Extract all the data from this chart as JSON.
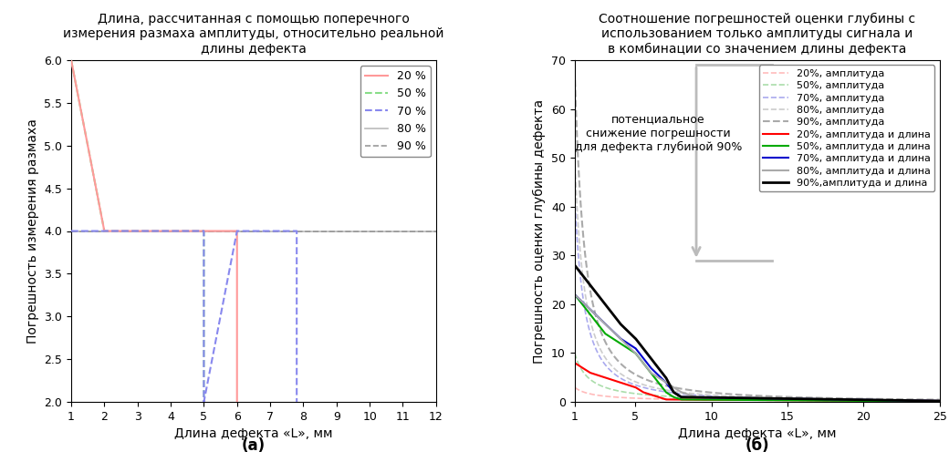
{
  "title_a": "Длина, рассчитанная с помощью поперечного\nизмерения размаха амплитуды, относительно реальной\nдлины дефекта",
  "title_b": "Соотношение погрешностей оценки глубины с\nиспользованием только амплитуды сигнала и\nв комбинации со значением длины дефекта",
  "xlabel": "Длина дефекта «L», мм",
  "ylabel_a": "Погрешность измерения размаха",
  "ylabel_b": "Погрешность оценки глубины дефекта",
  "label_a": "(а)",
  "label_b": "(б)",
  "annotation_text": "потенциальное\nснижение погрешности\nдля дефекта глубиной 90%",
  "legend_a": [
    "20 %",
    "50 %",
    "70 %",
    "80 %",
    "90 %"
  ],
  "legend_b_amp": [
    "20%, амплитуда",
    "50%, амплитуда",
    "70%, амплитуда",
    "80%, амплитуда",
    "90%, амплитуда"
  ],
  "legend_b_combo": [
    "20%, амплитуда и длина",
    "50%, амплитуда и длина",
    "70%, амплитуда и длина",
    "80%, амплитуда и длина",
    "90%,амплитуда и длина"
  ],
  "c20_a": "#FF9999",
  "c50_a": "#88DD88",
  "c70_a": "#8888EE",
  "c80_a": "#BBBBBB",
  "c90_a": "#999999",
  "c20_b_amp": "#FFBBBB",
  "c50_b_amp": "#AADDAA",
  "c70_b_amp": "#AAAAEE",
  "c80_b_amp": "#CCCCCC",
  "c90_b_amp": "#AAAAAA",
  "c20_b_sol": "#FF0000",
  "c50_b_sol": "#00AA00",
  "c70_b_sol": "#0000CC",
  "c80_b_sol": "#AAAAAA",
  "c90_b_sol": "#000000",
  "xlim_a": [
    1,
    12
  ],
  "ylim_a": [
    2,
    6
  ],
  "xlim_b": [
    1,
    25
  ],
  "ylim_b": [
    0,
    70
  ]
}
